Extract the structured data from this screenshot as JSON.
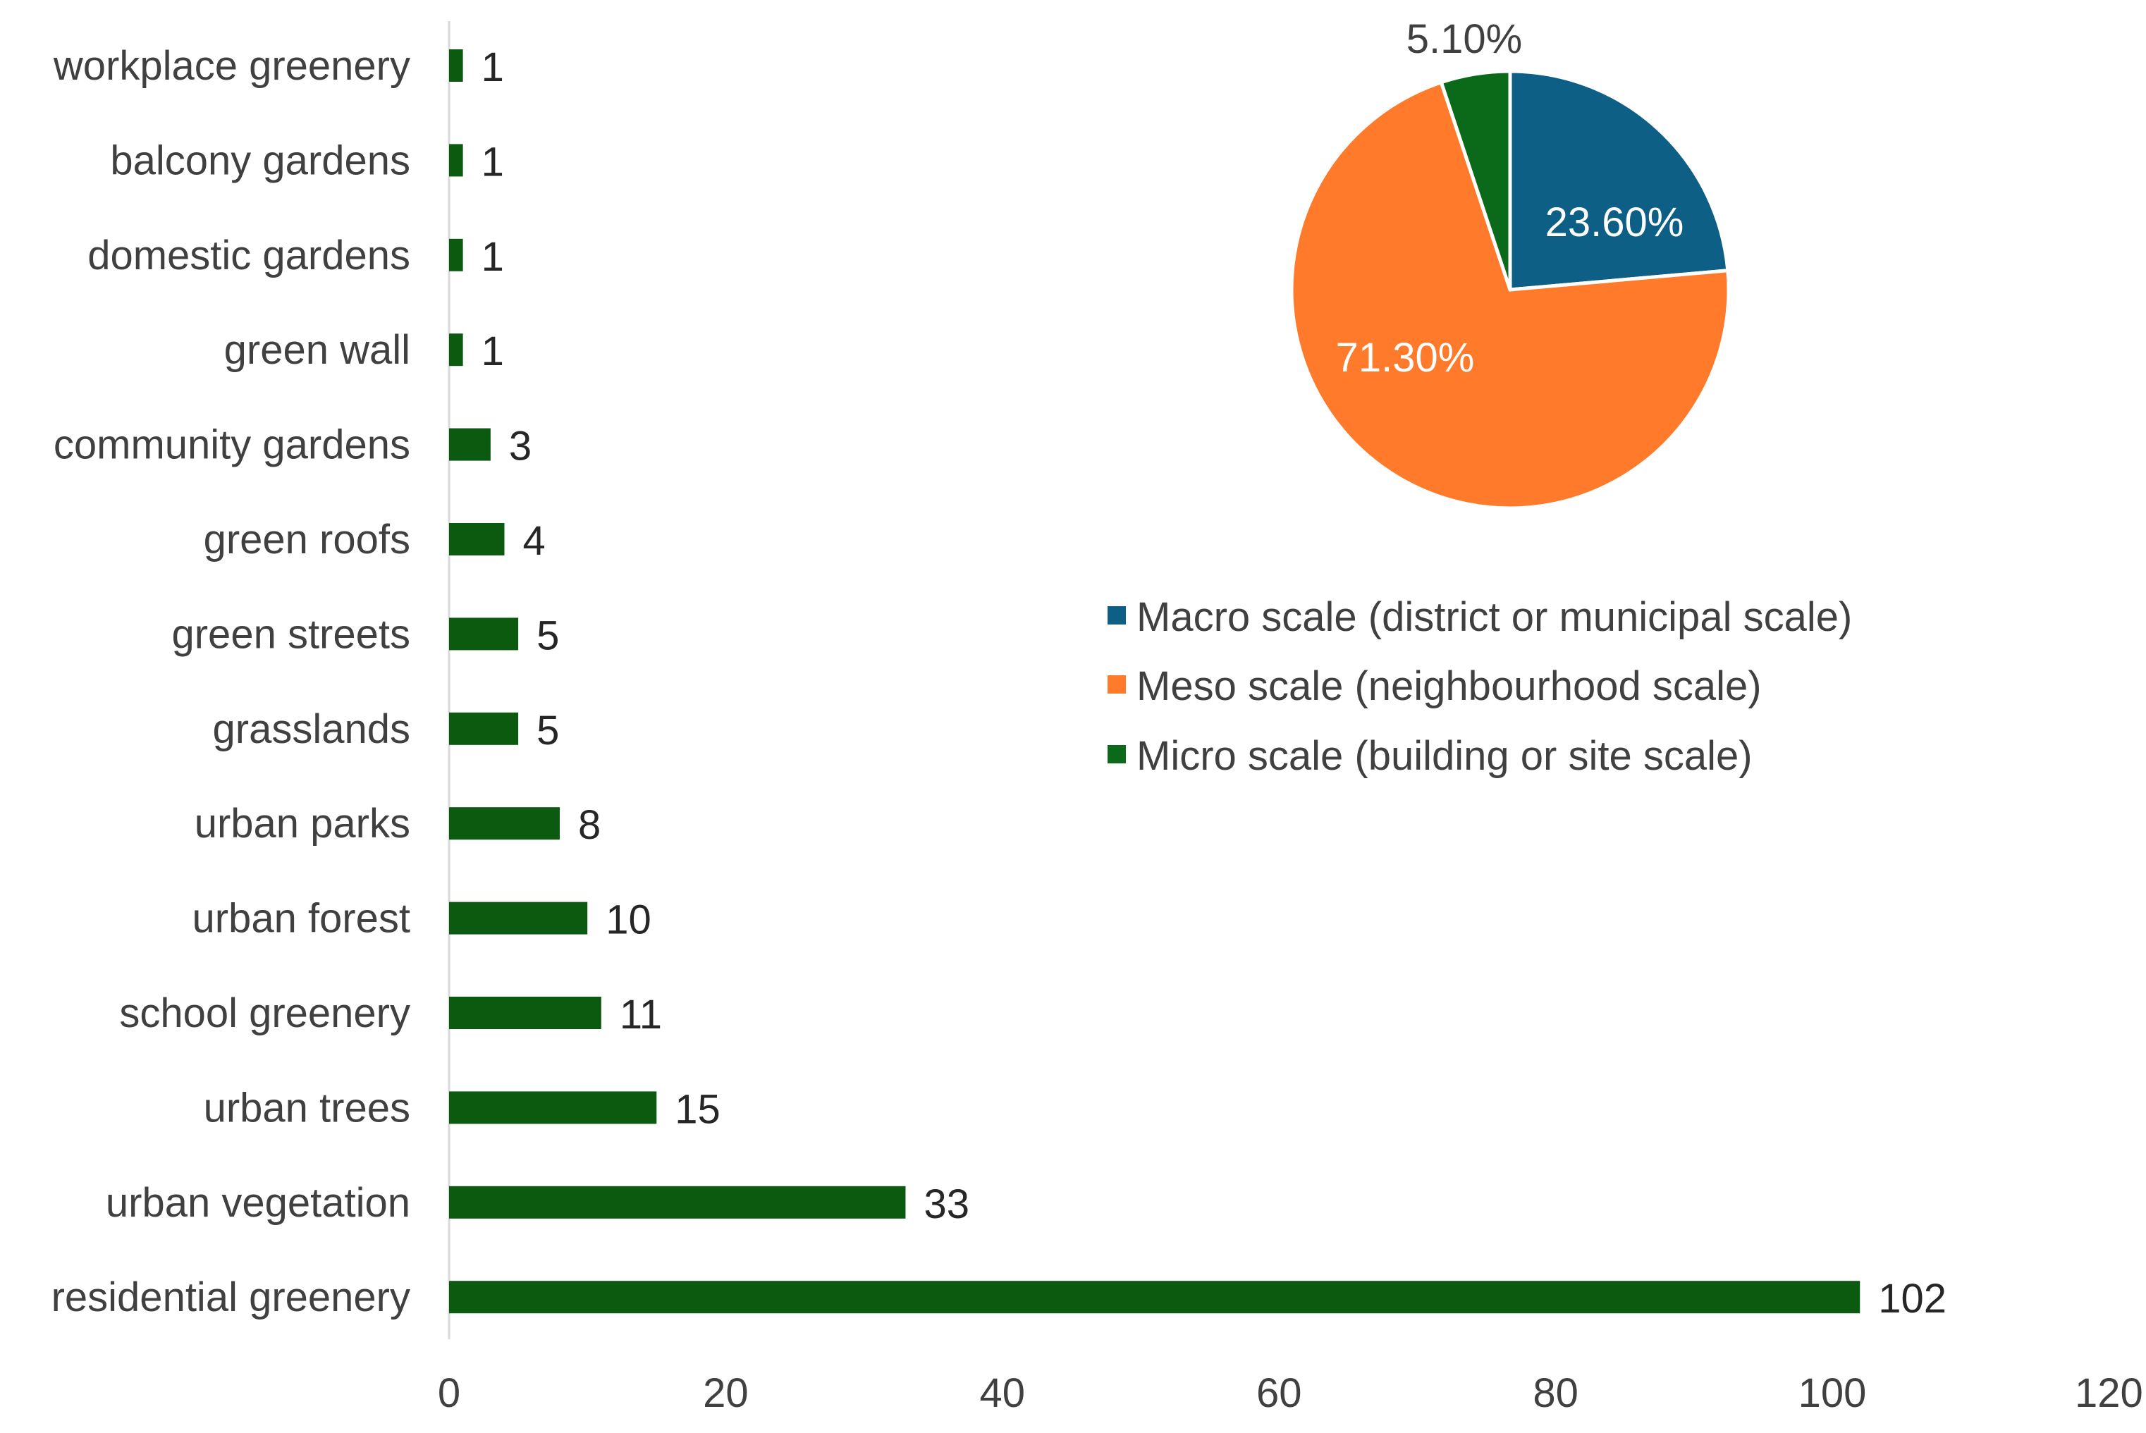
{
  "colors": {
    "bar": "#0b5a10",
    "axis": "#d9d9d9",
    "macro": "#0e5f86",
    "meso": "#ff7a2a",
    "micro": "#0b6a1a"
  },
  "chart_data": [
    {
      "type": "bar",
      "orientation": "horizontal",
      "categories": [
        "workplace greenery",
        "balcony gardens",
        "domestic gardens",
        "green wall",
        "community gardens",
        "green roofs",
        "green streets",
        "grasslands",
        "urban parks",
        "urban forest",
        "school greenery",
        "urban trees",
        "urban vegetation",
        "residential greenery"
      ],
      "values": [
        1,
        1,
        1,
        1,
        3,
        4,
        5,
        5,
        8,
        10,
        11,
        15,
        33,
        102
      ],
      "value_labels": [
        "1",
        "1",
        "1",
        "1",
        "3",
        "4",
        "5",
        "5",
        "8",
        "10",
        "11",
        "15",
        "33",
        "102"
      ],
      "xlim": [
        0,
        120
      ],
      "xticks": [
        0,
        20,
        40,
        60,
        80,
        100,
        120
      ],
      "xtick_labels": [
        "0",
        "20",
        "40",
        "60",
        "80",
        "100",
        "120"
      ],
      "title": "",
      "xlabel": "",
      "ylabel": "",
      "grid": false
    },
    {
      "type": "pie",
      "slices": [
        {
          "key": "macro",
          "name": "Macro scale (district or municipal scale)",
          "value": 23.6,
          "label": "23.60%"
        },
        {
          "key": "meso",
          "name": "Meso scale (neighbourhood scale)",
          "value": 71.3,
          "label": "71.30%"
        },
        {
          "key": "micro",
          "name": "Micro scale (building or site scale)",
          "value": 5.1,
          "label": "5.10%"
        }
      ],
      "legend_position": "below-pie",
      "start": "12 o'clock",
      "direction": "clockwise"
    }
  ]
}
